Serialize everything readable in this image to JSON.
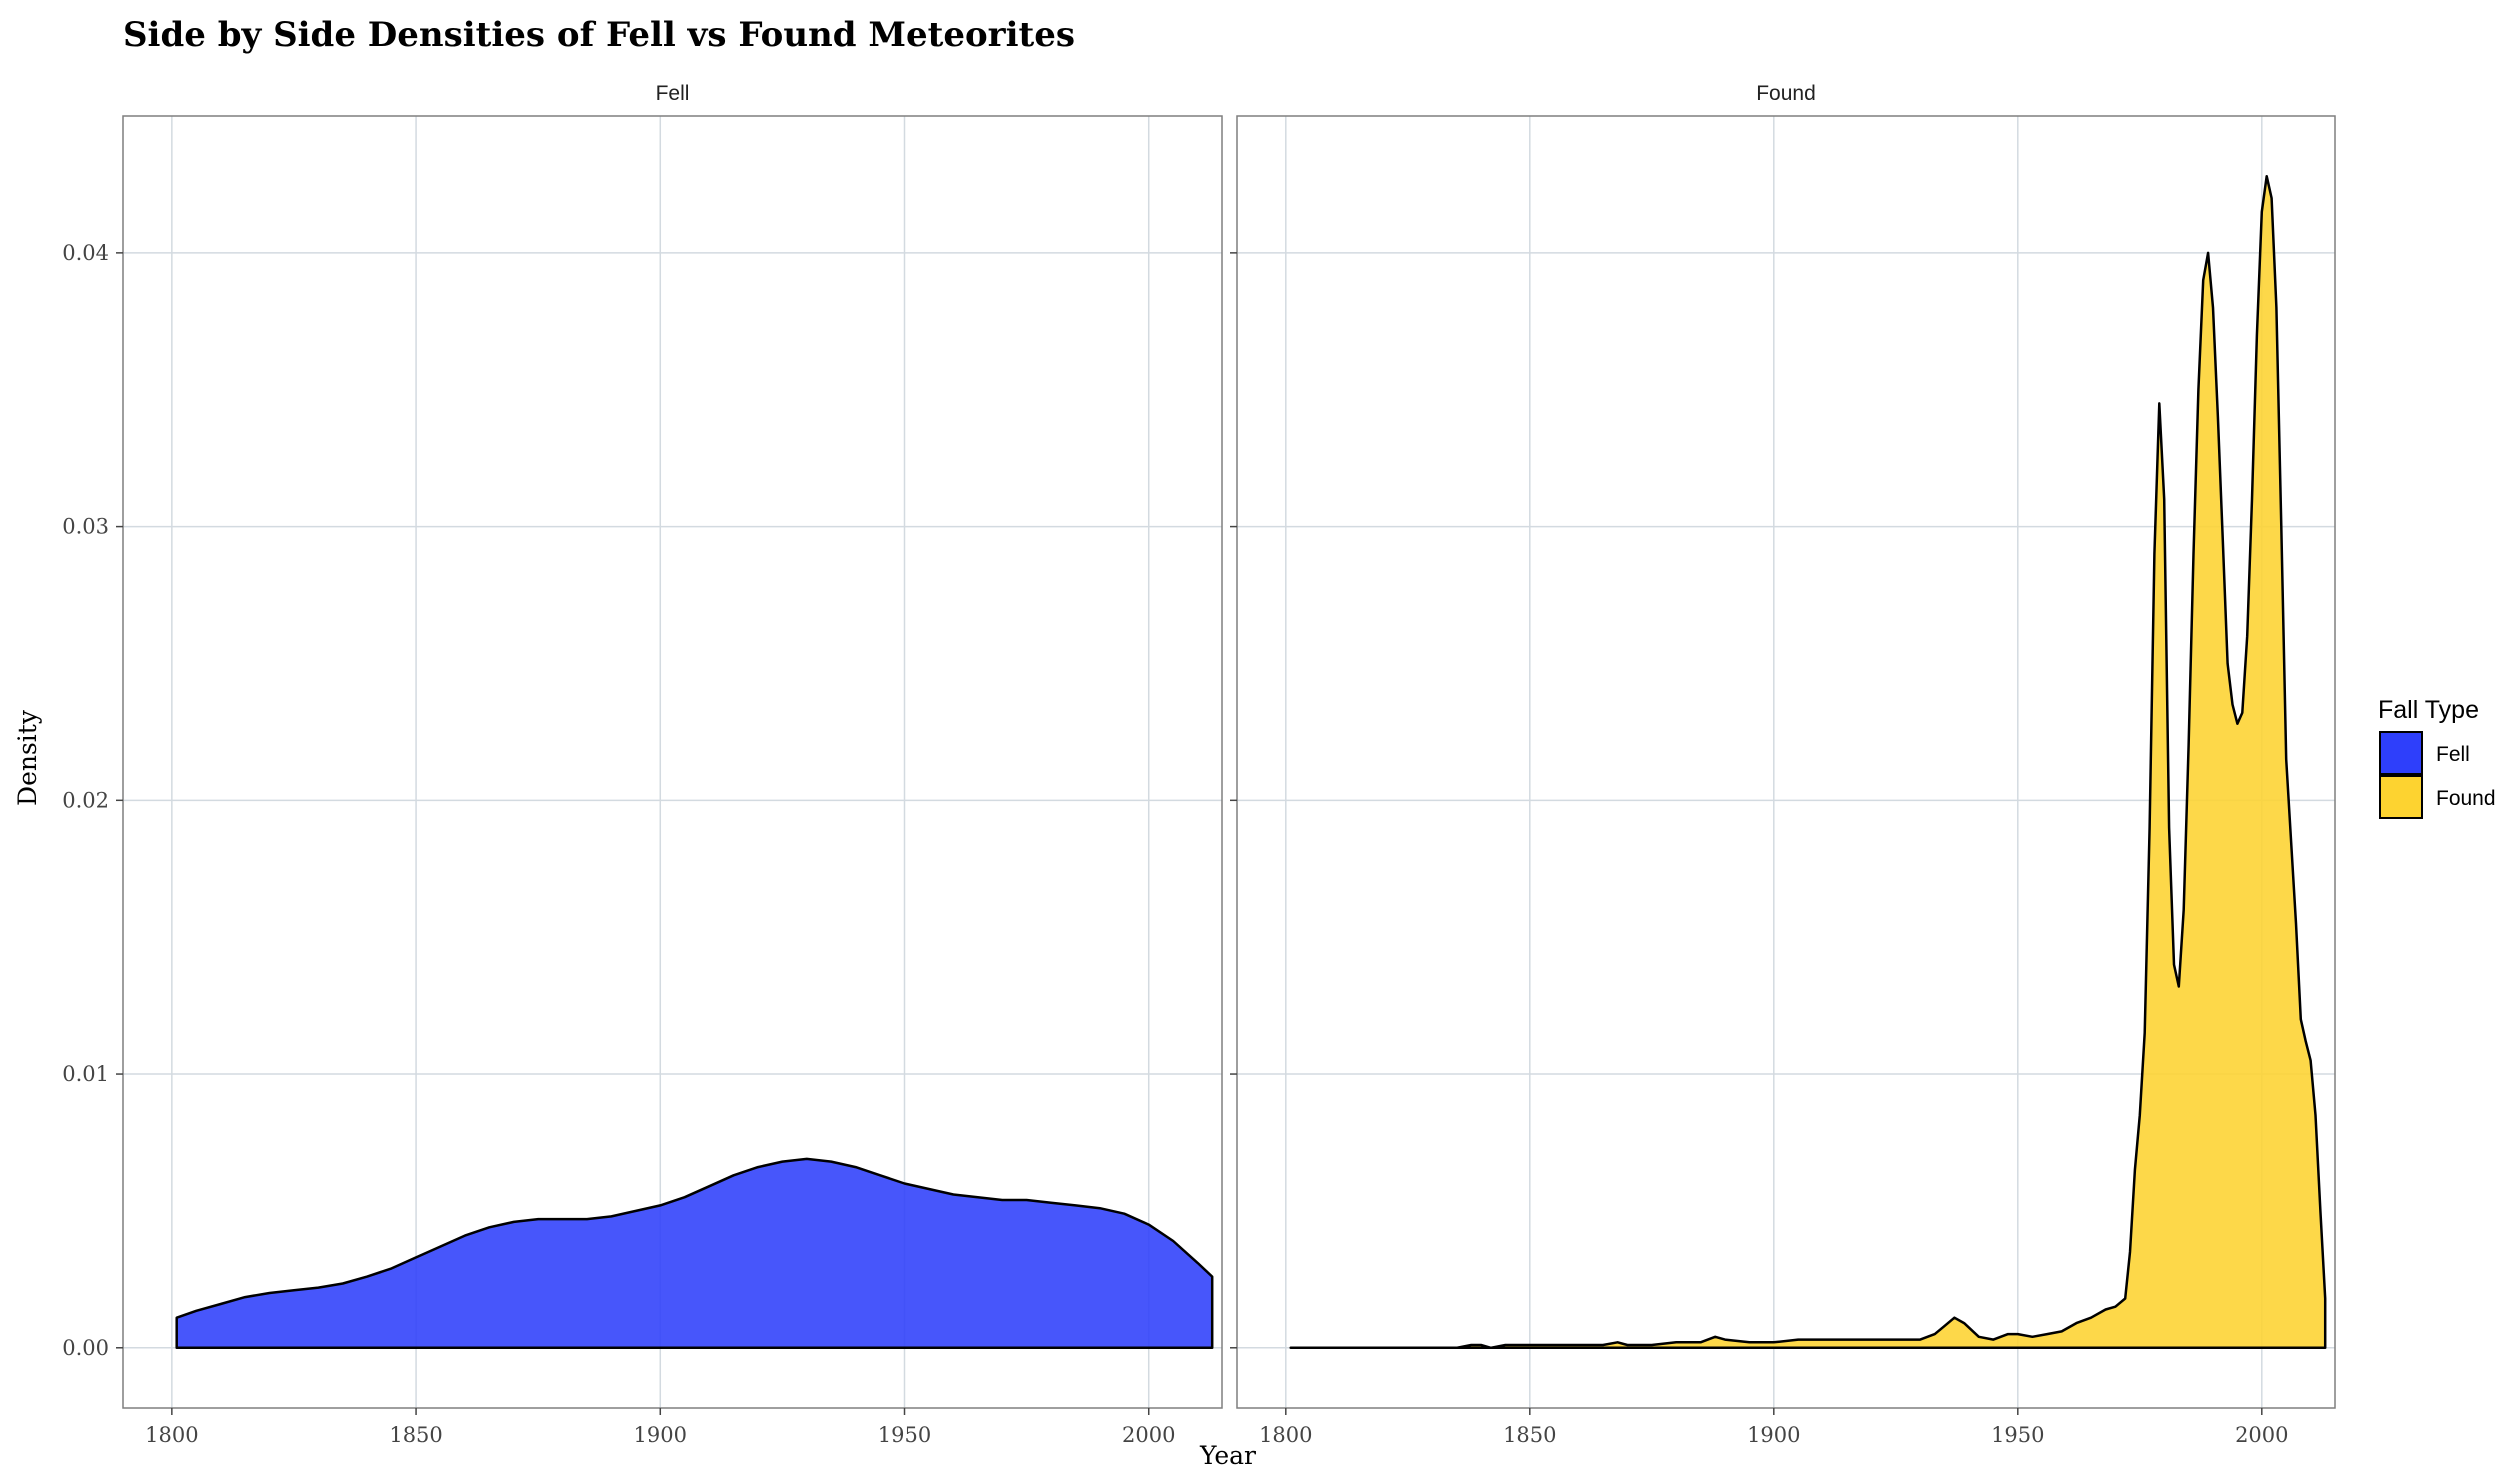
{
  "chart_data": {
    "type": "area",
    "title": "Side by Side Densities of Fell vs Found Meteorites",
    "xlabel": "Year",
    "ylabel": "Density",
    "xlim": [
      1790,
      2015
    ],
    "ylim": [
      -0.0022,
      0.045
    ],
    "x_ticks": [
      1800,
      1850,
      1900,
      1950,
      2000
    ],
    "x_tick_labels": [
      "1800",
      "1850",
      "1900",
      "1950",
      "2000"
    ],
    "y_ticks": [
      0.0,
      0.01,
      0.02,
      0.03,
      0.04
    ],
    "y_tick_labels": [
      "0.00",
      "0.01",
      "0.02",
      "0.03",
      "0.04"
    ],
    "grid": true,
    "legend": {
      "title": "Fall Type",
      "position": "right",
      "entries": [
        {
          "label": "Fell",
          "color": "#2E3FFB"
        },
        {
          "label": "Found",
          "color": "#FDD330"
        }
      ]
    },
    "facets": [
      {
        "label": "Fell",
        "color": "#2E3FFB",
        "x": [
          1801,
          1805,
          1810,
          1815,
          1820,
          1825,
          1830,
          1835,
          1840,
          1845,
          1850,
          1855,
          1860,
          1865,
          1870,
          1875,
          1880,
          1885,
          1890,
          1895,
          1900,
          1905,
          1910,
          1915,
          1920,
          1925,
          1930,
          1935,
          1940,
          1945,
          1950,
          1955,
          1960,
          1965,
          1970,
          1975,
          1980,
          1985,
          1990,
          1995,
          2000,
          2005,
          2010,
          2013
        ],
        "y": [
          0.0011,
          0.00135,
          0.0016,
          0.00185,
          0.002,
          0.0021,
          0.0022,
          0.00235,
          0.0026,
          0.0029,
          0.0033,
          0.0037,
          0.0041,
          0.0044,
          0.0046,
          0.0047,
          0.0047,
          0.0047,
          0.0048,
          0.005,
          0.0052,
          0.0055,
          0.0059,
          0.0063,
          0.0066,
          0.0068,
          0.0069,
          0.0068,
          0.0066,
          0.0063,
          0.006,
          0.0058,
          0.0056,
          0.0055,
          0.0054,
          0.0054,
          0.0053,
          0.0052,
          0.0051,
          0.0049,
          0.0045,
          0.0039,
          0.0031,
          0.0026
        ]
      },
      {
        "label": "Found",
        "color": "#FDD330",
        "x": [
          1801,
          1805,
          1810,
          1815,
          1820,
          1825,
          1830,
          1835,
          1838,
          1840,
          1842,
          1845,
          1850,
          1855,
          1860,
          1865,
          1868,
          1870,
          1875,
          1880,
          1885,
          1888,
          1890,
          1895,
          1900,
          1905,
          1910,
          1915,
          1920,
          1925,
          1930,
          1933,
          1935,
          1937,
          1939,
          1942,
          1945,
          1948,
          1950,
          1953,
          1956,
          1959,
          1962,
          1965,
          1968,
          1970,
          1972,
          1973,
          1974,
          1975,
          1976,
          1977,
          1978,
          1979,
          1980,
          1981,
          1982,
          1983,
          1984,
          1985,
          1986,
          1987,
          1988,
          1989,
          1990,
          1991,
          1992,
          1993,
          1994,
          1995,
          1996,
          1997,
          1998,
          1999,
          2000,
          2001,
          2002,
          2003,
          2004,
          2005,
          2006,
          2007,
          2008,
          2009,
          2010,
          2011,
          2012,
          2013
        ],
        "y": [
          0.0,
          0.0,
          0.0,
          0.0,
          0.0,
          0.0,
          0.0,
          0.0,
          0.0001,
          0.0001,
          0.0,
          0.0001,
          0.0001,
          0.0001,
          0.0001,
          0.0001,
          0.0002,
          0.0001,
          0.0001,
          0.0002,
          0.0002,
          0.0004,
          0.0003,
          0.0002,
          0.0002,
          0.0003,
          0.0003,
          0.0003,
          0.0003,
          0.0003,
          0.0003,
          0.0005,
          0.0008,
          0.0011,
          0.0009,
          0.0004,
          0.0003,
          0.0005,
          0.0005,
          0.0004,
          0.0005,
          0.0006,
          0.0009,
          0.0011,
          0.0014,
          0.0015,
          0.0018,
          0.0035,
          0.0065,
          0.0085,
          0.0115,
          0.019,
          0.029,
          0.0345,
          0.031,
          0.019,
          0.014,
          0.0132,
          0.016,
          0.022,
          0.029,
          0.035,
          0.039,
          0.04,
          0.038,
          0.034,
          0.0295,
          0.025,
          0.0235,
          0.0228,
          0.0232,
          0.026,
          0.031,
          0.037,
          0.0415,
          0.0428,
          0.042,
          0.038,
          0.03,
          0.0215,
          0.0185,
          0.0155,
          0.012,
          0.0112,
          0.0105,
          0.0085,
          0.005,
          0.0018
        ]
      }
    ]
  }
}
